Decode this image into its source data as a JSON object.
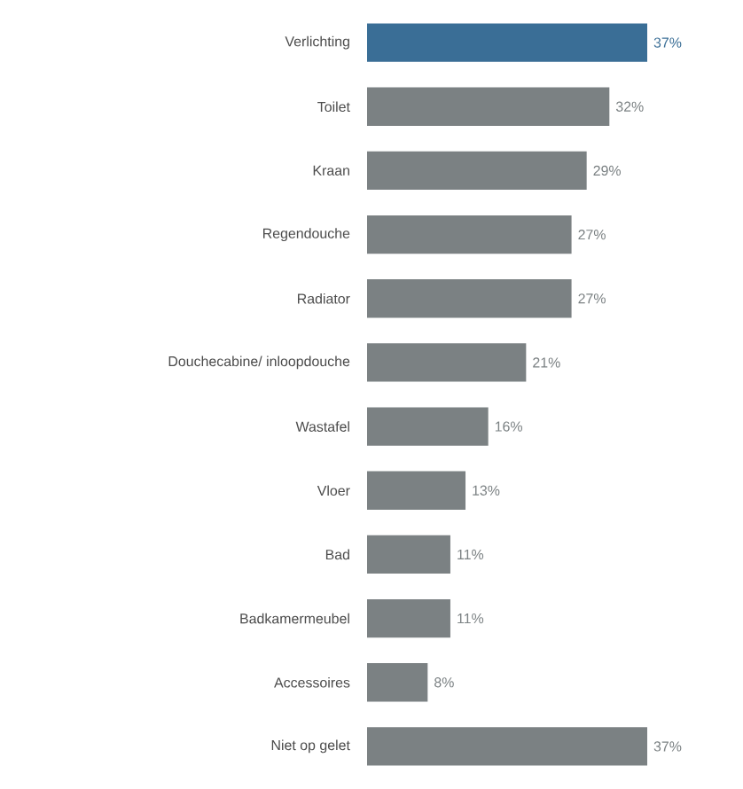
{
  "chart_data": {
    "type": "bar",
    "orientation": "horizontal",
    "categories": [
      "Verlichting",
      "Toilet",
      "Kraan",
      "Regendouche",
      "Radiator",
      "Douchecabine/ inloopdouche",
      "Wastafel",
      "Vloer",
      "Bad",
      "Badkamermeubel",
      "Accessoires",
      "Niet op gelet"
    ],
    "values": [
      37,
      32,
      29,
      27,
      27,
      21,
      16,
      13,
      11,
      11,
      8,
      37
    ],
    "colors": [
      "#3a6e96",
      "#7b8183",
      "#7b8183",
      "#7b8183",
      "#7b8183",
      "#7b8183",
      "#7b8183",
      "#7b8183",
      "#7b8183",
      "#7b8183",
      "#7b8183",
      "#7b8183"
    ],
    "value_labels": [
      "37%",
      "32%",
      "29%",
      "27%",
      "27%",
      "21%",
      "16%",
      "13%",
      "11%",
      "11%",
      "8%",
      "37%"
    ]
  }
}
